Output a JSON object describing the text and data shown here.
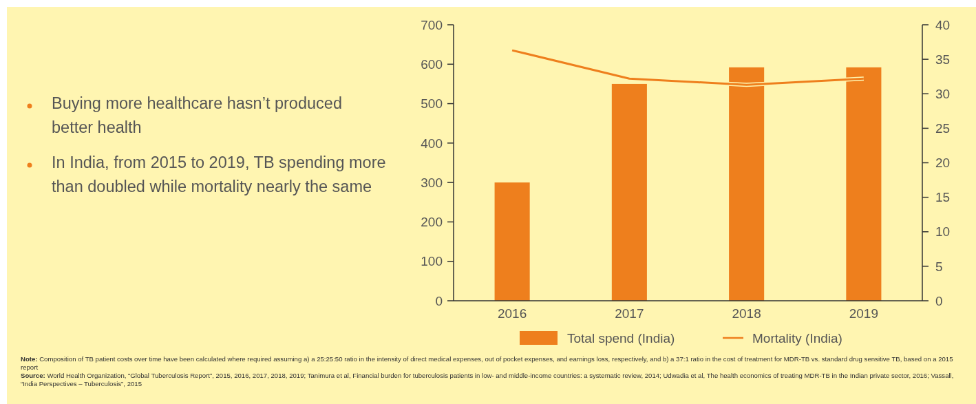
{
  "chart_data": {
    "type": "bar",
    "categories": [
      "2016",
      "2017",
      "2018",
      "2019"
    ],
    "series": [
      {
        "name": "Total spend (India)",
        "color": "#ee7f1d",
        "values": [
          300,
          550,
          592,
          592
        ]
      },
      {
        "name": "Mortality (India)",
        "type": "line",
        "axis": "y2",
        "color": "#ee7f1d",
        "values": [
          36.3,
          32.2,
          31.3,
          32.2
        ]
      }
    ],
    "ylim": [
      0,
      700
    ],
    "yticks": [
      0,
      100,
      200,
      300,
      400,
      500,
      600,
      700
    ],
    "y2lim": [
      0,
      40
    ],
    "y2ticks": [
      0,
      5,
      10,
      15,
      20,
      25,
      30,
      35,
      40
    ],
    "legend": "bottom",
    "marker": "none",
    "line_style": "solid",
    "annotations": [
      "Buying more healthcare hasn’t produced better health",
      "In India, from 2015 to 2019, TB spending more than doubled while mortality nearly the same",
      "Note: Composition of TB patient costs over time have been calculated where required assuming a) a 25:25:50 ratio in the intensity of direct medical expenses, out of pocket expenses, and earnings loss, respectively, and b) a 37:1 ratio in the cost of treatment for MDR-TB vs. standard drug sensitive TB, based on a 2015 report",
      "Source: World Health Organization, “Global Tuberculosis Report”, 2015, 2016, 2017, 2018, 2019; Tanimura et al, Financial burden for tuberculosis patients in low- and middle-income countries: a systematic review, 2014; Udwadia et al, The health economics of treating MDR-TB in the Indian private sector, 2016; Vassall, “India Perspectives – Tuberculosis”, 2015"
    ]
  }
}
